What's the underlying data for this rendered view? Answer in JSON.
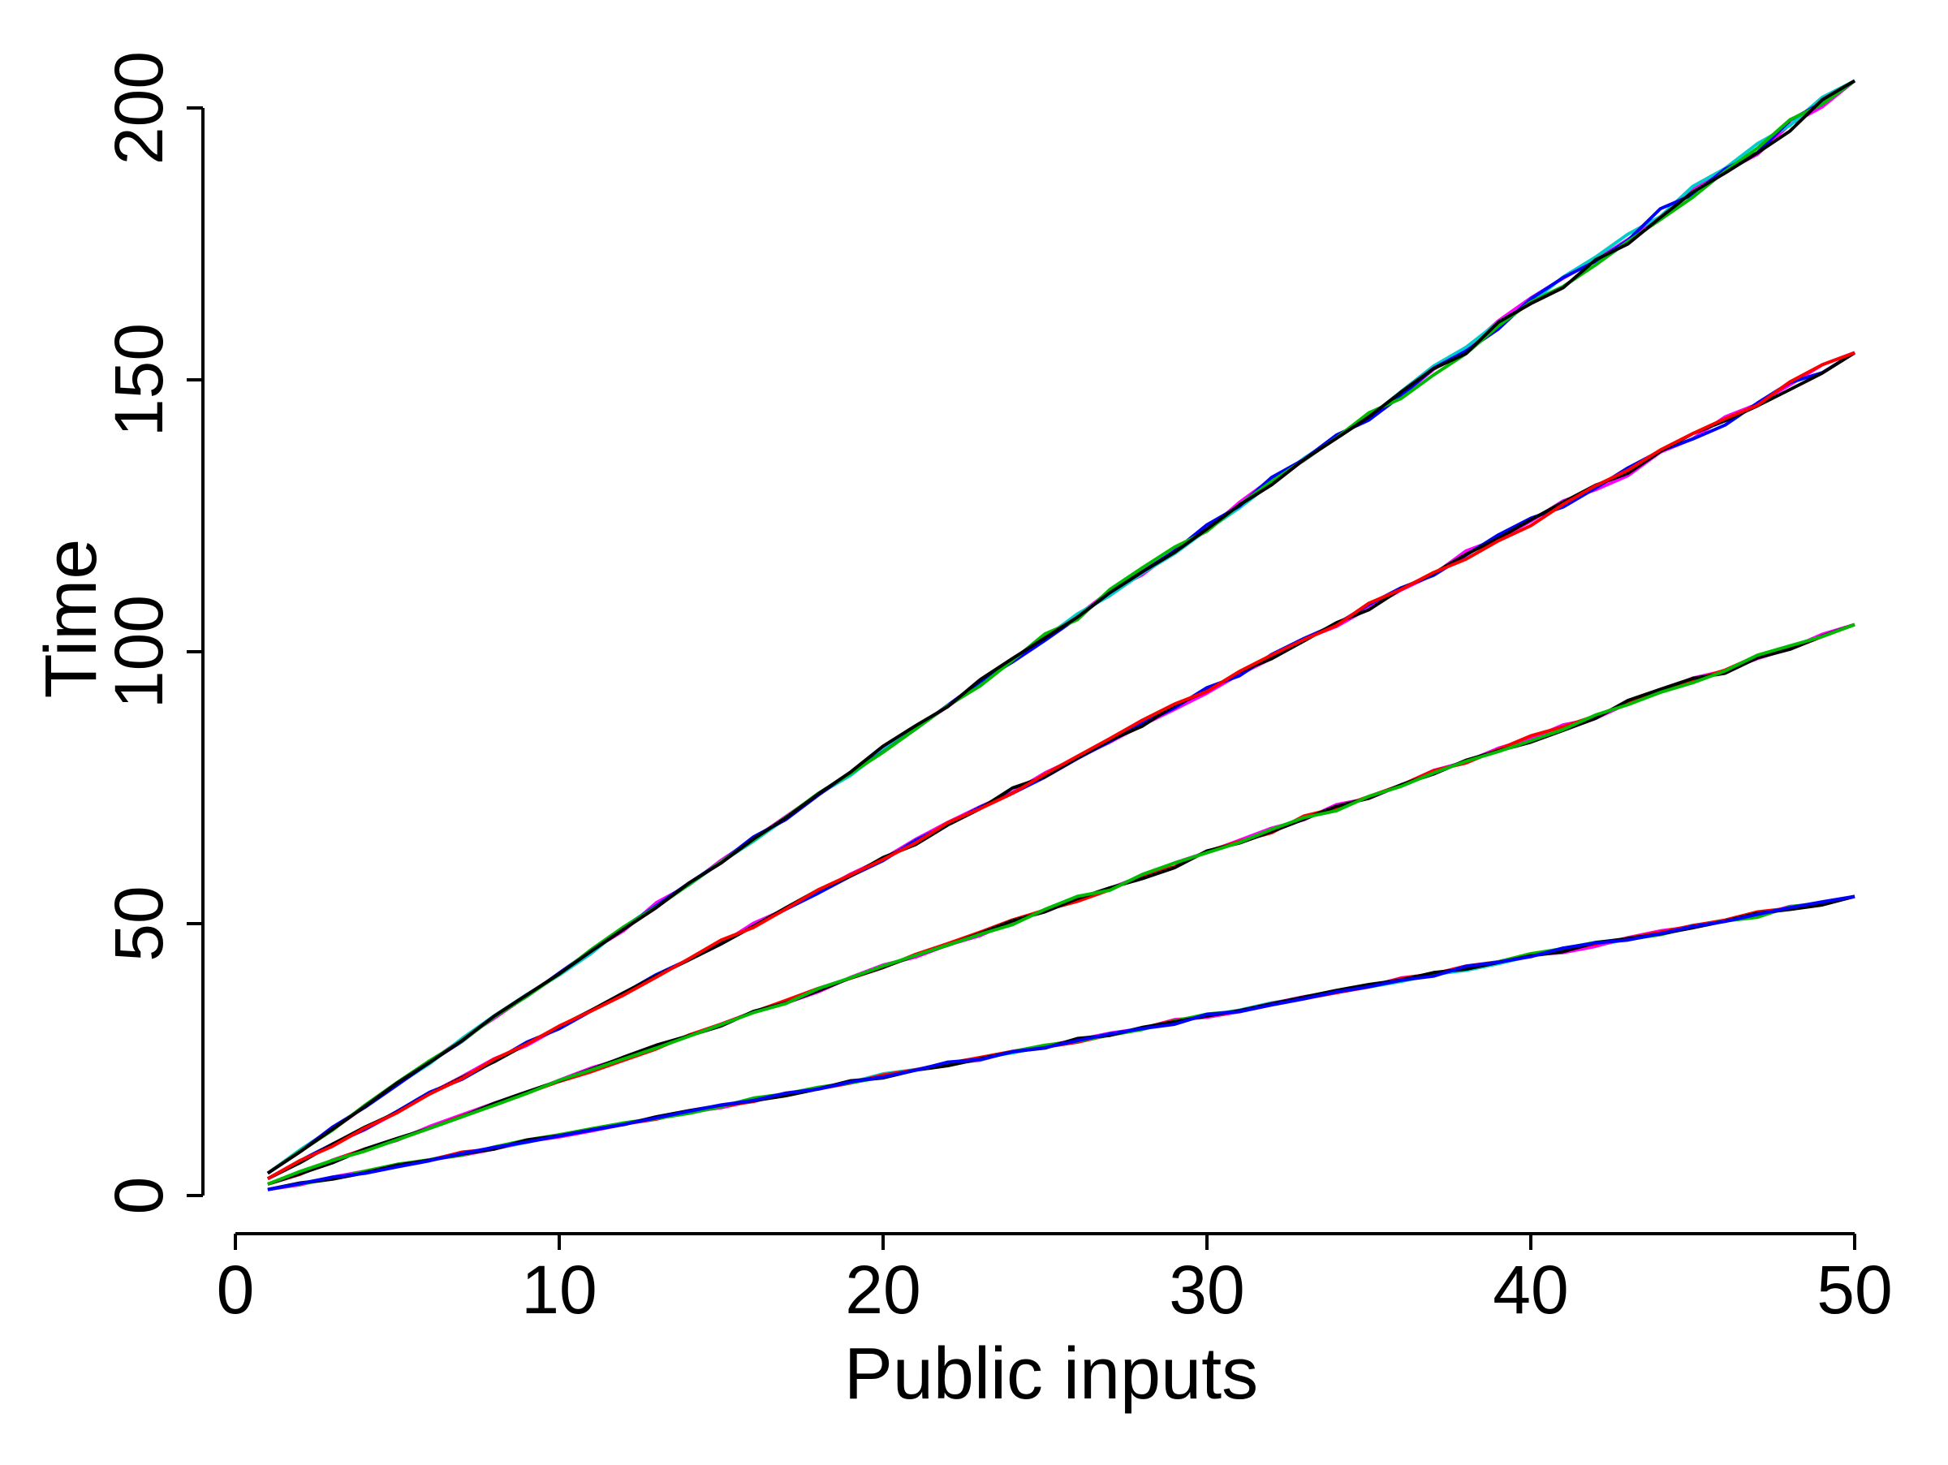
{
  "chart_data": {
    "type": "line",
    "title": "",
    "xlabel": "Public inputs",
    "ylabel": "Time",
    "xlim": [
      0,
      50
    ],
    "ylim": [
      0,
      200
    ],
    "xticks": [
      0,
      10,
      20,
      30,
      40,
      50
    ],
    "yticks": [
      0,
      50,
      100,
      150,
      200
    ],
    "grid": false,
    "legend": "none",
    "groups": [
      {
        "slope": 4.1,
        "values_at": {
          "x": [
            1,
            10,
            20,
            30,
            40,
            50
          ],
          "y": [
            4.1,
            41,
            82,
            123,
            164,
            205
          ]
        },
        "series": [
          {
            "color": "#ff00ff"
          },
          {
            "color": "#00cccc"
          },
          {
            "color": "#0000ff"
          },
          {
            "color": "#00bb00"
          },
          {
            "color": "#000000"
          }
        ]
      },
      {
        "slope": 3.1,
        "values_at": {
          "x": [
            1,
            10,
            20,
            30,
            40,
            50
          ],
          "y": [
            3.1,
            31,
            62,
            93,
            124,
            155
          ]
        },
        "series": [
          {
            "color": "#ff00ff"
          },
          {
            "color": "#0000ff"
          },
          {
            "color": "#000000"
          },
          {
            "color": "#ff0000"
          }
        ]
      },
      {
        "slope": 2.1,
        "values_at": {
          "x": [
            1,
            10,
            20,
            30,
            40,
            50
          ],
          "y": [
            2.1,
            21,
            42,
            63,
            84,
            105
          ]
        },
        "series": [
          {
            "color": "#ff00ff"
          },
          {
            "color": "#ff0000"
          },
          {
            "color": "#000000"
          },
          {
            "color": "#00bb00"
          }
        ]
      },
      {
        "slope": 1.1,
        "values_at": {
          "x": [
            1,
            10,
            20,
            30,
            40,
            50
          ],
          "y": [
            1.1,
            11,
            22,
            33,
            44,
            55
          ]
        },
        "series": [
          {
            "color": "#00cccc"
          },
          {
            "color": "#ff00ff"
          },
          {
            "color": "#ff0000"
          },
          {
            "color": "#00bb00"
          },
          {
            "color": "#000000"
          },
          {
            "color": "#0000ff"
          }
        ]
      }
    ]
  }
}
